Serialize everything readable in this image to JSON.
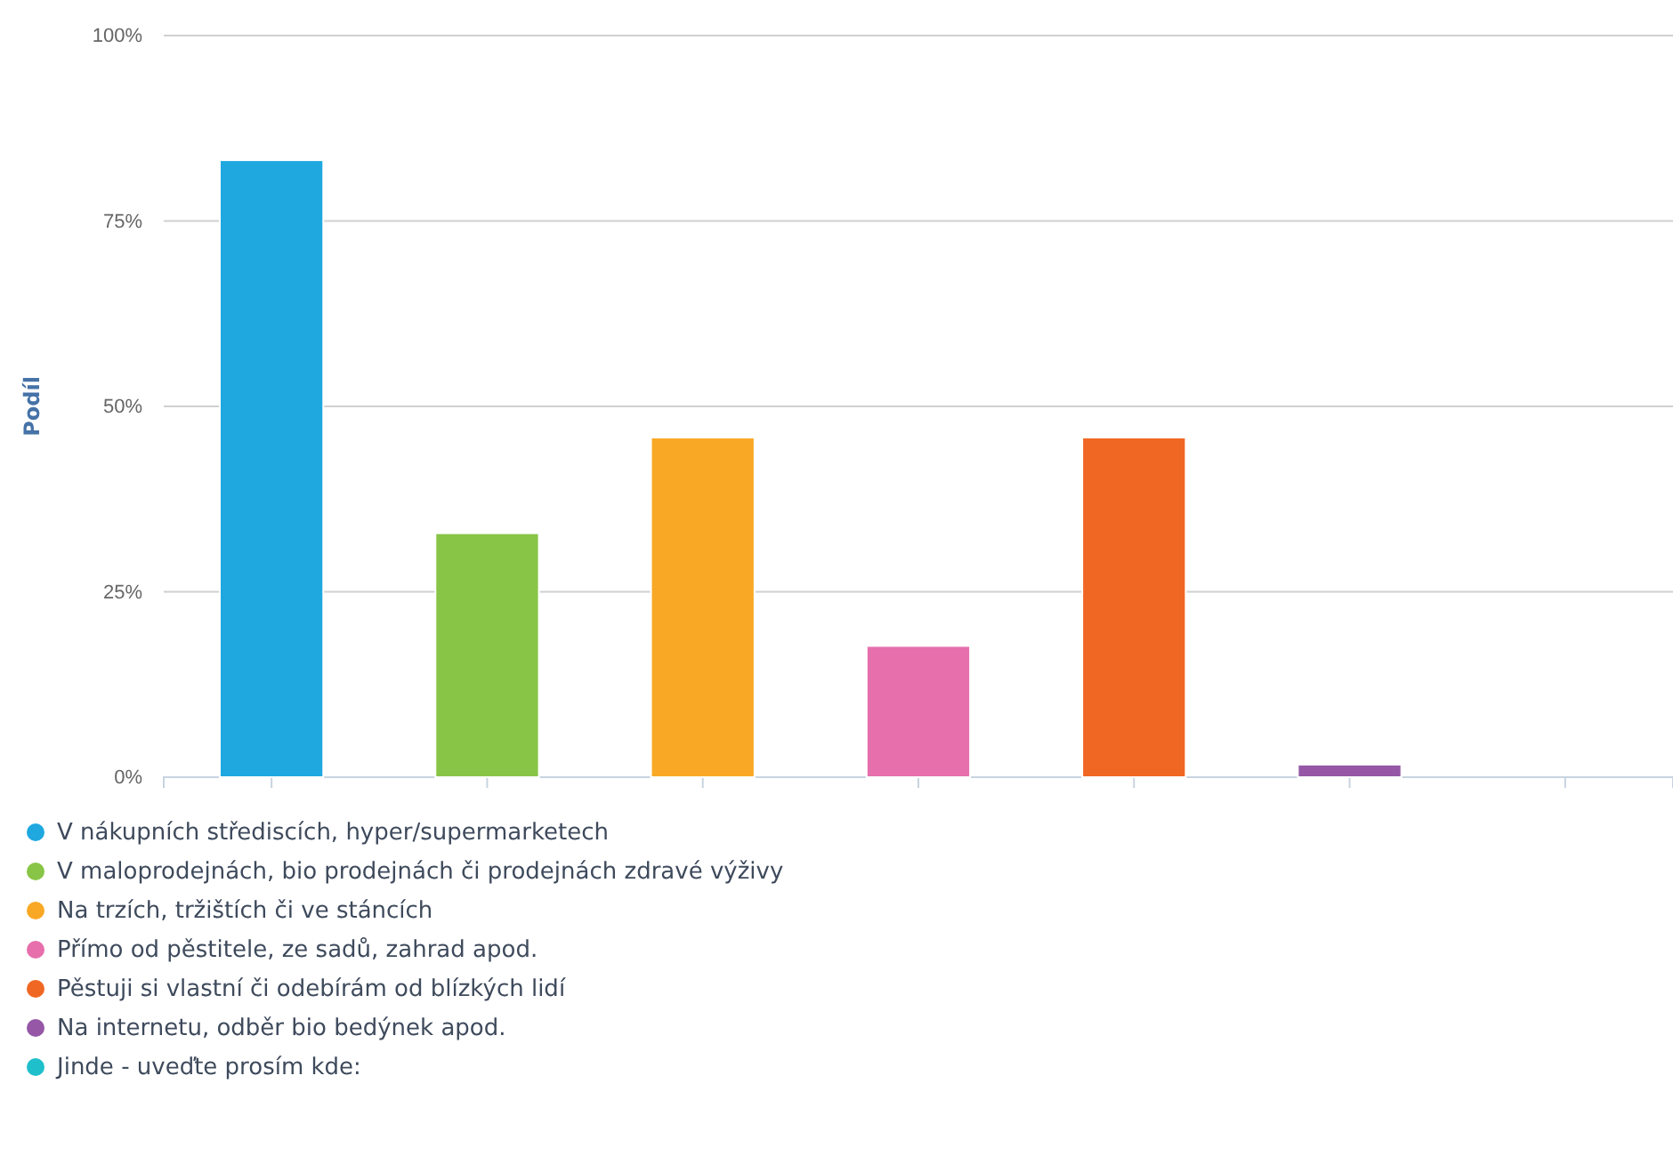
{
  "chart_data": {
    "type": "bar",
    "ylabel": "Podíl",
    "categories": [
      null,
      null,
      null,
      null,
      null,
      null,
      null
    ],
    "series": [
      {
        "name": "V nákupních střediscích, hyper/supermarketech",
        "color": "#1fa8e0",
        "values": [
          83.2,
          null,
          null,
          null,
          null,
          null,
          null
        ]
      },
      {
        "name": "V maloprodejnách, bio prodejnách či prodejnách zdravé výživy",
        "color": "#88c546",
        "values": [
          null,
          32.9,
          null,
          null,
          null,
          null,
          null
        ]
      },
      {
        "name": "Na trzích, tržištích či ve stáncích",
        "color": "#f9a825",
        "values": [
          null,
          null,
          45.8,
          null,
          null,
          null,
          null
        ]
      },
      {
        "name": "Přímo od pěstitele, ze sadů, zahrad apod.",
        "color": "#e66fac",
        "values": [
          null,
          null,
          null,
          17.7,
          null,
          null,
          null
        ]
      },
      {
        "name": "Pěstuji si vlastní či odebírám od blízkých lidí",
        "color": "#f06723",
        "values": [
          null,
          null,
          null,
          null,
          45.8,
          null,
          null
        ]
      },
      {
        "name": "Na internetu, odběr bio bedýnek apod.",
        "color": "#9557a6",
        "values": [
          null,
          null,
          null,
          null,
          null,
          1.7,
          null
        ]
      },
      {
        "name": "Jinde - uveďte prosím kde:",
        "color": "#1fbfcc",
        "values": [
          null,
          null,
          null,
          null,
          null,
          null,
          0
        ]
      }
    ],
    "ylim": [
      0,
      100
    ],
    "yticks": [
      {
        "value": 0,
        "label": "0%"
      },
      {
        "value": 25,
        "label": "25%"
      },
      {
        "value": 50,
        "label": "50%"
      },
      {
        "value": 75,
        "label": "75%"
      },
      {
        "value": 100,
        "label": "100%"
      }
    ],
    "grid": "y",
    "legend": "bottom"
  }
}
